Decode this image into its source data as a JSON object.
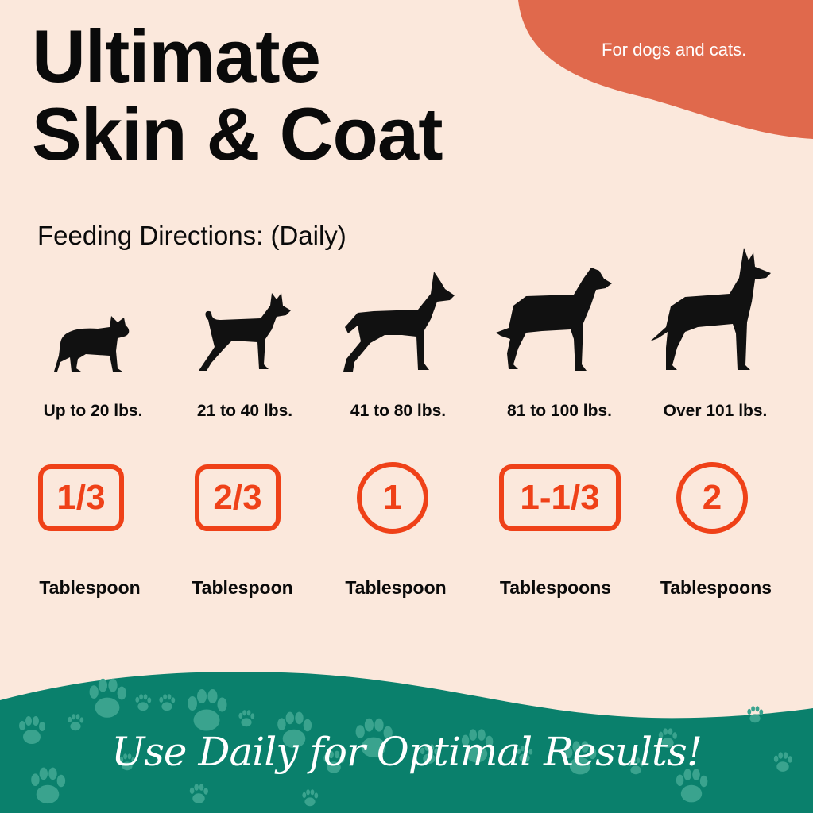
{
  "header": {
    "title_line1": "Ultimate",
    "title_line2": "Skin & Coat",
    "tagline": "For dogs and cats.",
    "subtitle": "Feeding Directions: (Daily)"
  },
  "colors": {
    "background": "#fbe8dc",
    "accent_blob": "#e0694c",
    "dose": "#ef4118",
    "footer": "#0a806c"
  },
  "dosage": [
    {
      "weight": "Up to 20 lbs.",
      "amount": "1/3",
      "unit": "Tablespoon",
      "shape": "rounded-box",
      "icon": "french-bulldog-icon"
    },
    {
      "weight": "21 to 40 lbs.",
      "amount": "2/3",
      "unit": "Tablespoon",
      "shape": "rounded-box",
      "icon": "basenji-icon"
    },
    {
      "weight": "41 to 80 lbs.",
      "amount": "1",
      "unit": "Tablespoon",
      "shape": "circle",
      "icon": "doberman-icon"
    },
    {
      "weight": "81 to 100 lbs.",
      "amount": "1-1/3",
      "unit": "Tablespoons",
      "shape": "rounded-box",
      "icon": "great-dane-icon"
    },
    {
      "weight": "Over 101 lbs.",
      "amount": "2",
      "unit": "Tablespoons",
      "shape": "circle",
      "icon": "large-great-dane-icon"
    }
  ],
  "footer": {
    "slogan": "Use Daily for Optimal Results!",
    "pattern_icon": "paw-print-icon"
  }
}
